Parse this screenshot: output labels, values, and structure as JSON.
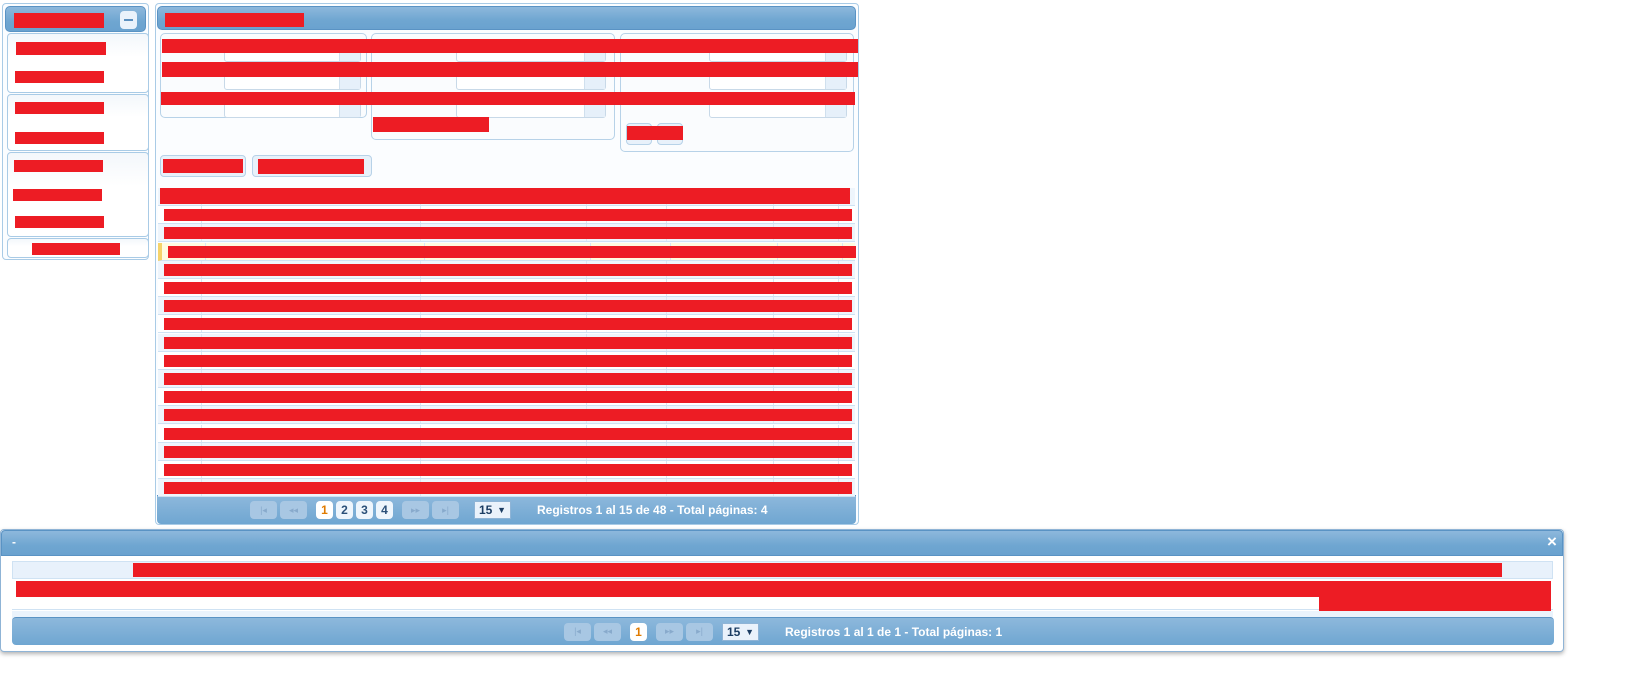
{
  "colors": {
    "header": "#6fa6d1",
    "redaction": "#ed1c24",
    "selected_row": "#fffbe0"
  },
  "sidebar": {
    "collapse_icon": "minus-icon"
  },
  "main_grid": {
    "pager": {
      "pages": [
        "1",
        "2",
        "3",
        "4"
      ],
      "current_page": "1",
      "page_size": "15",
      "summary": "Registros 1 al 15 de 48 - Total páginas: 4",
      "first_icon": "first-page-icon",
      "prev_icon": "prev-page-icon",
      "next_icon": "next-page-icon",
      "last_icon": "last-page-icon"
    }
  },
  "detail_window": {
    "title": "-",
    "close_icon": "×",
    "pager": {
      "pages": [
        "1"
      ],
      "current_page": "1",
      "page_size": "15",
      "summary": "Registros 1 al 1 de 1 - Total páginas: 1"
    }
  }
}
